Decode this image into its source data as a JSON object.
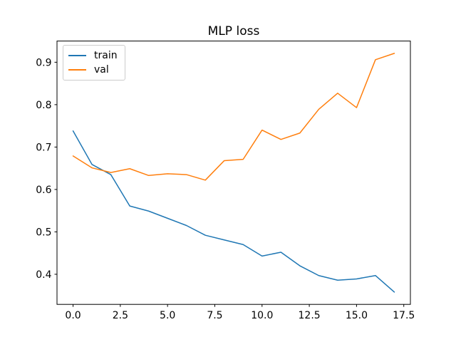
{
  "figure_title": "MLP loss",
  "colors": {
    "background": "#ffffff",
    "axes_frame": "#000000",
    "tick_text": "#000000",
    "legend_border": "#cccccc",
    "train": "#1f77b4",
    "val": "#ff7f0e"
  },
  "chart_data": {
    "type": "line",
    "title": "MLP loss",
    "xlabel": "",
    "ylabel": "",
    "x": [
      0,
      1,
      2,
      3,
      4,
      5,
      6,
      7,
      8,
      9,
      10,
      11,
      12,
      13,
      14,
      15,
      16,
      17
    ],
    "series": [
      {
        "name": "train",
        "color": "#1f77b4",
        "values": [
          0.738,
          0.659,
          0.635,
          0.561,
          0.549,
          0.532,
          0.515,
          0.492,
          0.481,
          0.47,
          0.443,
          0.452,
          0.42,
          0.397,
          0.386,
          0.389,
          0.397,
          0.358
        ]
      },
      {
        "name": "val",
        "color": "#ff7f0e",
        "values": [
          0.679,
          0.651,
          0.64,
          0.649,
          0.633,
          0.637,
          0.635,
          0.622,
          0.668,
          0.671,
          0.74,
          0.718,
          0.733,
          0.789,
          0.827,
          0.793,
          0.906,
          0.921
        ]
      }
    ],
    "xlim": [
      -0.85,
      17.85
    ],
    "ylim": [
      0.329,
      0.95
    ],
    "xticks": [
      0.0,
      2.5,
      5.0,
      7.5,
      10.0,
      12.5,
      15.0,
      17.5
    ],
    "xtick_labels": [
      "0.0",
      "2.5",
      "5.0",
      "7.5",
      "10.0",
      "12.5",
      "15.0",
      "17.5"
    ],
    "yticks": [
      0.4,
      0.5,
      0.6,
      0.7,
      0.8,
      0.9
    ],
    "ytick_labels": [
      "0.4",
      "0.5",
      "0.6",
      "0.7",
      "0.8",
      "0.9"
    ],
    "grid": false,
    "legend_position": "upper left"
  }
}
